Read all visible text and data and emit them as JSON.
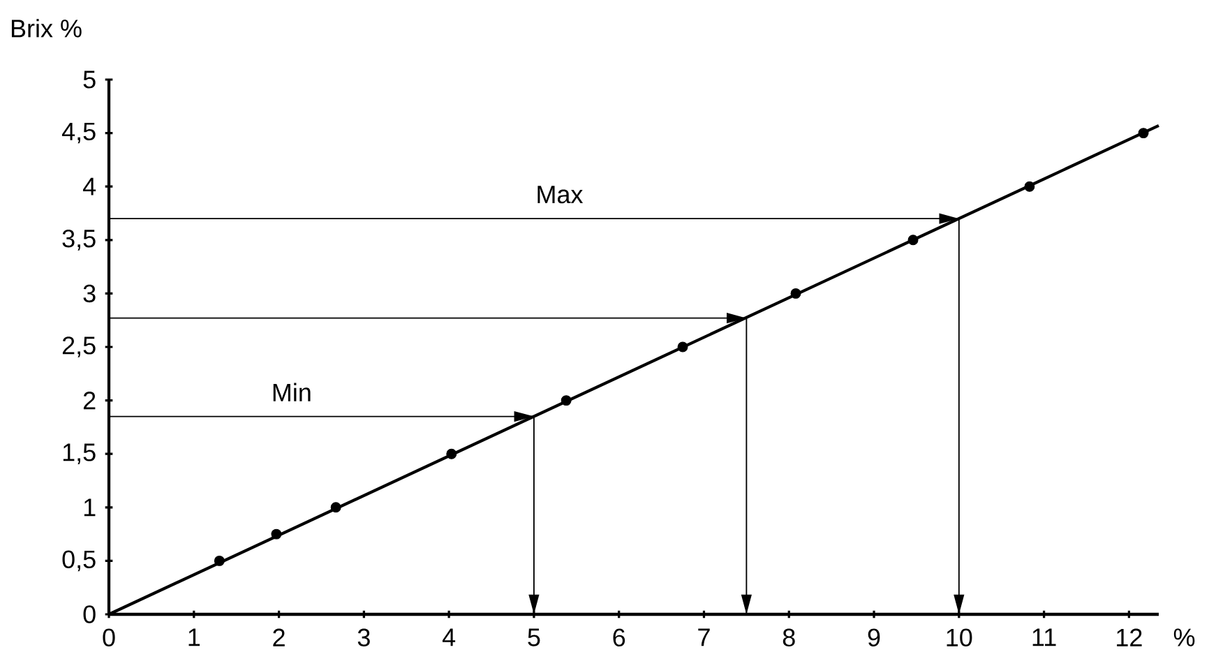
{
  "chart_data": {
    "type": "line",
    "ylabel": "Brix %",
    "xlabel": "%",
    "xlim": [
      0,
      12.35
    ],
    "ylim": [
      0,
      5
    ],
    "xticks": [
      0,
      1,
      2,
      3,
      4,
      5,
      6,
      7,
      8,
      9,
      10,
      11,
      12
    ],
    "yticks": [
      0,
      {
        "value": 0.5,
        "label": "0,5"
      },
      1,
      {
        "value": 1.5,
        "label": "1,5"
      },
      2,
      {
        "value": 2.5,
        "label": "2,5"
      },
      3,
      {
        "value": 3.5,
        "label": "3,5"
      },
      4,
      {
        "value": 4.5,
        "label": "4,5"
      },
      5
    ],
    "grid": false,
    "series": [
      {
        "color": "#000000",
        "x": [
          0,
          12.35
        ],
        "values": [
          0,
          4.57
        ]
      },
      {
        "type": "scatter",
        "color": "#000000",
        "marker": "circle",
        "x": [
          1.3,
          1.97,
          2.67,
          4.03,
          5.38,
          6.75,
          8.08,
          9.46,
          10.83,
          12.17
        ],
        "values": [
          0.5,
          0.75,
          1,
          1.5,
          2,
          2.5,
          3,
          3.5,
          4,
          4.5
        ]
      },
      {
        "color": "#000000",
        "x": [
          0,
          5,
          5
        ],
        "values": [
          1.85,
          1.85,
          0
        ]
      },
      {
        "color": "#000000",
        "x": [
          0,
          7.5,
          7.5
        ],
        "values": [
          2.77,
          2.77,
          0
        ]
      },
      {
        "color": "#000000",
        "x": [
          0,
          10,
          10
        ],
        "values": [
          3.7,
          3.7,
          0
        ]
      }
    ],
    "annotations": [
      {
        "text": "Min",
        "x": 2.15,
        "y": 1.85
      },
      {
        "text": "Max",
        "x": 5.3,
        "y": 3.7
      }
    ]
  }
}
